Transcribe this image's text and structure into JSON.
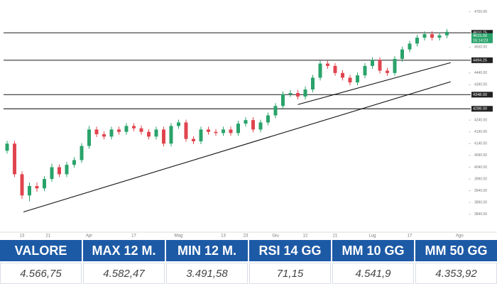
{
  "chart_data": {
    "type": "candlestick",
    "open": [
      4110,
      4140,
      4010,
      3920,
      3960,
      3950,
      3990,
      4040,
      4010,
      4050,
      4070,
      4130,
      4200,
      4180,
      4170,
      4200,
      4190,
      4215,
      4205,
      4190,
      4170,
      4200,
      4140,
      4215,
      4230,
      4160,
      4150,
      4200,
      4190,
      4185,
      4200,
      4185,
      4225,
      4240,
      4200,
      4230,
      4260,
      4300,
      4350,
      4355,
      4340,
      4370,
      4420,
      4480,
      4470,
      4440,
      4420,
      4400,
      4430,
      4470,
      4495,
      4450,
      4440,
      4500,
      4540,
      4565,
      4590,
      4605,
      4590,
      4600
    ],
    "high": [
      4152,
      4152,
      4022,
      3975,
      3975,
      4002,
      4055,
      4052,
      4062,
      4082,
      4142,
      4215,
      4212,
      4192,
      4212,
      4212,
      4227,
      4227,
      4217,
      4202,
      4212,
      4212,
      4227,
      4242,
      4242,
      4172,
      4212,
      4212,
      4202,
      4212,
      4212,
      4237,
      4252,
      4252,
      4242,
      4272,
      4312,
      4362,
      4367,
      4367,
      4382,
      4432,
      4492,
      4492,
      4482,
      4452,
      4432,
      4442,
      4482,
      4507,
      4507,
      4462,
      4512,
      4552,
      4577,
      4602,
      4617,
      4617,
      4612,
      4627
    ],
    "low": [
      4098,
      3998,
      3905,
      3895,
      3935,
      3938,
      3978,
      3998,
      3998,
      4038,
      4058,
      4118,
      4168,
      4158,
      4158,
      4178,
      4178,
      4193,
      4178,
      4158,
      4158,
      4128,
      4128,
      4203,
      4148,
      4138,
      4138,
      4178,
      4173,
      4173,
      4173,
      4173,
      4213,
      4188,
      4188,
      4218,
      4248,
      4288,
      4338,
      4328,
      4328,
      4358,
      4408,
      4458,
      4428,
      4408,
      4388,
      4388,
      4418,
      4458,
      4438,
      4428,
      4428,
      4488,
      4528,
      4553,
      4578,
      4578,
      4578,
      4588
    ],
    "close": [
      4140,
      4010,
      3920,
      3960,
      3950,
      3990,
      4040,
      4010,
      4050,
      4070,
      4130,
      4200,
      4180,
      4170,
      4200,
      4190,
      4215,
      4205,
      4190,
      4170,
      4200,
      4140,
      4215,
      4230,
      4160,
      4150,
      4200,
      4190,
      4185,
      4200,
      4185,
      4225,
      4240,
      4200,
      4230,
      4260,
      4300,
      4350,
      4355,
      4340,
      4370,
      4420,
      4480,
      4470,
      4440,
      4420,
      4400,
      4430,
      4470,
      4495,
      4450,
      4440,
      4500,
      4540,
      4565,
      4590,
      4605,
      4590,
      4600,
      4615
    ],
    "up_color": "#2aa36b",
    "down_color": "#e0454f",
    "ylim": [
      3770,
      4735
    ],
    "yticks": [
      {
        "value": 4700,
        "label": "4700.00"
      },
      {
        "value": 4550,
        "label": "4550.00"
      },
      {
        "value": 4440,
        "label": "4440.00"
      },
      {
        "value": 4390,
        "label": "4390.00"
      },
      {
        "value": 4240,
        "label": "4240.00"
      },
      {
        "value": 4190,
        "label": "4190.00"
      },
      {
        "value": 4140,
        "label": "4140.00"
      },
      {
        "value": 4090,
        "label": "4090.00"
      },
      {
        "value": 4040,
        "label": "4040.00"
      },
      {
        "value": 3990,
        "label": "3990.00"
      },
      {
        "value": 3940,
        "label": "3940.00"
      },
      {
        "value": 3890,
        "label": "3890.00"
      },
      {
        "value": 3840,
        "label": "3840.00"
      }
    ],
    "levels": [
      {
        "value": 4610.75,
        "label": "4610.75"
      },
      {
        "value": 4494.25,
        "label": "4494.25"
      },
      {
        "value": 4348,
        "label": "4348.00"
      },
      {
        "value": 4288,
        "label": "4288.00"
      }
    ],
    "last_price": {
      "value": 4615,
      "label": "4615.00",
      "time": "16:14:23"
    },
    "trendlines": [
      [
        [
          2.2,
          3850
        ],
        [
          59.5,
          4403
        ]
      ],
      [
        [
          39,
          4306
        ],
        [
          59.5,
          4484
        ]
      ]
    ],
    "xticks": [
      {
        "value": 2,
        "label": "13"
      },
      {
        "value": 5.5,
        "label": "21"
      },
      {
        "value": 11,
        "label": "Apr"
      },
      {
        "value": 17,
        "label": "17"
      },
      {
        "value": 23,
        "label": "Mag"
      },
      {
        "value": 29,
        "label": "13"
      },
      {
        "value": 32,
        "label": "23"
      },
      {
        "value": 36,
        "label": "Giu"
      },
      {
        "value": 40,
        "label": "12"
      },
      {
        "value": 44,
        "label": "21"
      },
      {
        "value": 49,
        "label": "Lug"
      },
      {
        "value": 54,
        "label": "17"
      },
      {
        "value": 60.7,
        "label": "Ago"
      }
    ]
  },
  "table": {
    "headers": [
      "VALORE",
      "MAX 12 M.",
      "MIN 12 M.",
      "RSI 14 GG",
      "MM 10 GG",
      "MM 50 GG"
    ],
    "values": [
      "4.566,75",
      "4.582,47",
      "3.491,58",
      "71,15",
      "4.541,9",
      "4.353,92"
    ]
  }
}
